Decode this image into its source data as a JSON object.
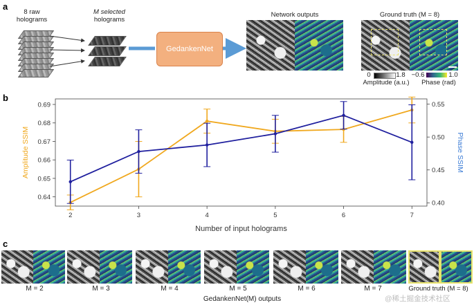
{
  "panel_a": {
    "letter": "a",
    "raw_label_line1": "8 raw",
    "raw_label_line2": "holograms",
    "selected_label_line1": "M selected",
    "selected_label_line2": "holograms",
    "network_name": "GedankenNet",
    "network_outputs_label": "Network outputs",
    "ground_truth_label": "Ground truth (M = 8)",
    "amplitude_min": "0",
    "amplitude_max": "1.8",
    "amplitude_caption": "Amplitude (a.u.)",
    "phase_min": "−0.6",
    "phase_max": "1.0",
    "phase_caption": "Phase (rad)",
    "amp_colors": [
      "#000000",
      "#ffffff"
    ],
    "phase_colors": [
      "#440154",
      "#31688e",
      "#35b779",
      "#fde725"
    ]
  },
  "panel_b": {
    "letter": "b"
  },
  "chart_data": {
    "type": "line",
    "x": [
      2,
      3,
      4,
      5,
      6,
      7
    ],
    "xlabel": "Number of input holograms",
    "ylabel_left": "Amplitude SSIM",
    "ylabel_right": "Phase SSIM",
    "ylim_left": [
      0.635,
      0.693
    ],
    "ylim_right": [
      0.395,
      0.558
    ],
    "yticks_left": [
      0.64,
      0.65,
      0.66,
      0.67,
      0.68,
      0.69
    ],
    "yticks_right": [
      0.4,
      0.45,
      0.5,
      0.55
    ],
    "ytick_labels_left": [
      "0.64",
      "0.65",
      "0.66",
      "0.67",
      "0.68",
      "0.69"
    ],
    "ytick_labels_right": [
      "0.40",
      "0.45",
      "0.50",
      "0.55"
    ],
    "xtick_labels": [
      "2",
      "3",
      "4",
      "5",
      "6",
      "7"
    ],
    "series": [
      {
        "name": "Amplitude SSIM",
        "axis": "left",
        "color": "#f0a81e",
        "values": [
          0.637,
          0.655,
          0.681,
          0.6755,
          0.6765,
          0.687
        ],
        "err": [
          0.004,
          0.015,
          0.0065,
          0.0065,
          0.007,
          0.007
        ]
      },
      {
        "name": "Phase SSIM",
        "axis": "right",
        "color": "#1f1f9e",
        "values": [
          0.432,
          0.478,
          0.488,
          0.505,
          0.533,
          0.492
        ],
        "err": [
          0.033,
          0.033,
          0.033,
          0.028,
          0.021,
          0.057
        ]
      }
    ]
  },
  "panel_c": {
    "letter": "c",
    "labels": [
      "M = 2",
      "M = 3",
      "M = 4",
      "M = 5",
      "M = 6",
      "M = 7",
      "Ground truth (M = 8)"
    ],
    "caption": "GedankenNet(M) outputs"
  },
  "watermark": "@稀土掘金技术社区"
}
